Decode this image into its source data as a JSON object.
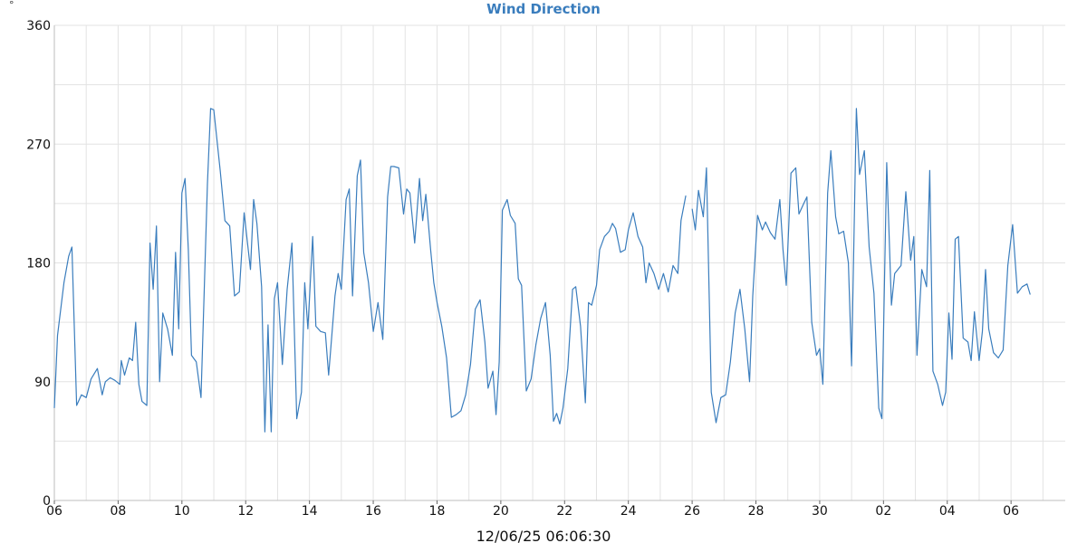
{
  "chart_data": {
    "type": "line",
    "title": "Wind Direction",
    "unit_label": "°",
    "xlabel": "12/06/25 06:06:30",
    "ylabel": "",
    "ylim": [
      0,
      360
    ],
    "yticks": [
      0,
      90,
      180,
      270,
      360
    ],
    "grid": true,
    "line_color": "#3a7dbd",
    "x_tick_labels": [
      "06",
      "08",
      "10",
      "12",
      "14",
      "16",
      "18",
      "20",
      "22",
      "24",
      "26",
      "28",
      "30",
      "02",
      "04",
      "06"
    ],
    "x_tick_hours": [
      6,
      8,
      10,
      12,
      14,
      16,
      18,
      20,
      22,
      24,
      26,
      28,
      30,
      32,
      34,
      36
    ],
    "x_range_hours": [
      6,
      37.7
    ],
    "series": [
      {
        "segments": [
          {
            "x": [
              6.0,
              6.1,
              6.3,
              6.45,
              6.55,
              6.7,
              6.85,
              7.0,
              7.15,
              7.35,
              7.5,
              7.6,
              7.75,
              7.9,
              8.05,
              8.1,
              8.2,
              8.35,
              8.45,
              8.55,
              8.65,
              8.75,
              8.9,
              9.0,
              9.1,
              9.2,
              9.3,
              9.4,
              9.55,
              9.7,
              9.8,
              9.9,
              10.0,
              10.1,
              10.2,
              10.3,
              10.45,
              10.6,
              10.8,
              10.9,
              11.0,
              11.2,
              11.35,
              11.5,
              11.65,
              11.8,
              11.95,
              12.15,
              12.25,
              12.35,
              12.5,
              12.6,
              12.7,
              12.8,
              12.9,
              13.0,
              13.15,
              13.3,
              13.45,
              13.6,
              13.75,
              13.85,
              13.95,
              14.1,
              14.2,
              14.35,
              14.5,
              14.6,
              14.8,
              14.9,
              15.0,
              15.15,
              15.25,
              15.35,
              15.5,
              15.6,
              15.7,
              15.85,
              16.0,
              16.15,
              16.3,
              16.45,
              16.55,
              16.65,
              16.8,
              16.95,
              17.05,
              17.15,
              17.3,
              17.45,
              17.55,
              17.65,
              17.8,
              17.9,
              18.0,
              18.15,
              18.3,
              18.45,
              18.6,
              18.75,
              18.9,
              19.05,
              19.2,
              19.35,
              19.5,
              19.6,
              19.75,
              19.85,
              19.95,
              20.05,
              20.2,
              20.3,
              20.45,
              20.55,
              20.65,
              20.8,
              20.95,
              21.1,
              21.25,
              21.4,
              21.55,
              21.65,
              21.75,
              21.85,
              21.95,
              22.1,
              22.25,
              22.35,
              22.5,
              22.65,
              22.75,
              22.85,
              23.0,
              23.1,
              23.25,
              23.4,
              23.5,
              23.6,
              23.75,
              23.9,
              24.0,
              24.15,
              24.3,
              24.45,
              24.55,
              24.65,
              24.8,
              24.95,
              25.1,
              25.25,
              25.4,
              25.55,
              25.65,
              25.8
            ]
          },
          {
            "x": [
              26.0,
              26.1,
              26.2,
              26.35,
              26.45,
              26.6,
              26.75,
              26.9,
              27.05,
              27.2,
              27.35,
              27.5,
              27.65,
              27.8,
              27.9,
              28.05,
              28.2,
              28.3,
              28.45,
              28.6,
              28.75,
              28.85,
              28.95,
              29.1,
              29.25,
              29.35,
              29.5,
              29.6,
              29.75,
              29.9,
              30.0,
              30.1,
              30.25,
              30.35,
              30.5,
              30.6,
              30.75,
              30.9,
              31.0,
              31.15,
              31.25,
              31.4,
              31.55,
              31.7,
              31.85,
              31.95,
              32.1,
              32.25,
              32.35,
              32.55,
              32.7,
              32.85,
              32.95,
              33.05,
              33.2,
              33.35,
              33.45,
              33.55,
              33.7,
              33.85,
              33.95,
              34.05,
              34.15,
              34.25,
              34.35,
              34.5,
              34.65,
              34.75,
              34.85,
              35.0,
              35.1,
              35.2,
              35.3,
              35.45,
              35.6,
              35.75,
              35.9,
              36.05,
              36.2,
              36.35,
              36.5,
              36.6
            ]
          }
        ],
        "values_segments": [
          [
            70,
            125,
            165,
            185,
            192,
            72,
            80,
            78,
            92,
            100,
            80,
            90,
            93,
            91,
            88,
            106,
            95,
            108,
            106,
            135,
            88,
            75,
            72,
            195,
            160,
            208,
            90,
            142,
            130,
            110,
            188,
            130,
            233,
            244,
            190,
            110,
            105,
            78,
            240,
            297,
            296,
            250,
            212,
            208,
            155,
            158,
            218,
            175,
            228,
            210,
            162,
            52,
            133,
            52,
            153,
            165,
            103,
            160,
            195,
            62,
            82,
            165,
            130,
            200,
            132,
            128,
            127,
            95,
            155,
            172,
            160,
            228,
            236,
            155,
            246,
            258,
            188,
            165,
            128,
            150,
            122,
            230,
            253,
            253,
            252,
            217,
            236,
            233,
            195,
            244,
            212,
            232,
            190,
            165,
            150,
            132,
            108,
            63,
            65,
            68,
            80,
            103,
            145,
            152,
            120,
            85,
            98,
            65,
            105,
            220,
            228,
            216,
            210,
            168,
            163,
            83,
            92,
            118,
            138,
            150,
            110,
            60,
            66,
            58,
            70,
            100,
            160,
            162,
            132,
            74,
            150,
            148,
            163,
            190,
            200,
            204,
            210,
            206,
            188,
            190,
            205,
            218,
            200,
            192,
            165,
            180,
            172,
            160,
            172,
            158,
            178,
            172,
            212,
            231
          ],
          [
            221,
            205,
            235,
            215,
            252,
            82,
            59,
            78,
            80,
            105,
            142,
            160,
            130,
            90,
            155,
            216,
            205,
            211,
            203,
            198,
            228,
            190,
            163,
            248,
            252,
            217,
            225,
            230,
            135,
            110,
            115,
            88,
            233,
            265,
            215,
            202,
            204,
            180,
            102,
            297,
            247,
            265,
            192,
            157,
            70,
            62,
            256,
            148,
            172,
            178,
            234,
            182,
            200,
            110,
            175,
            162,
            250,
            98,
            88,
            72,
            82,
            142,
            107,
            198,
            200,
            123,
            120,
            106,
            143,
            106,
            128,
            175,
            130,
            112,
            108,
            114,
            178,
            209,
            157,
            162,
            164,
            156
          ]
        ]
      }
    ]
  }
}
